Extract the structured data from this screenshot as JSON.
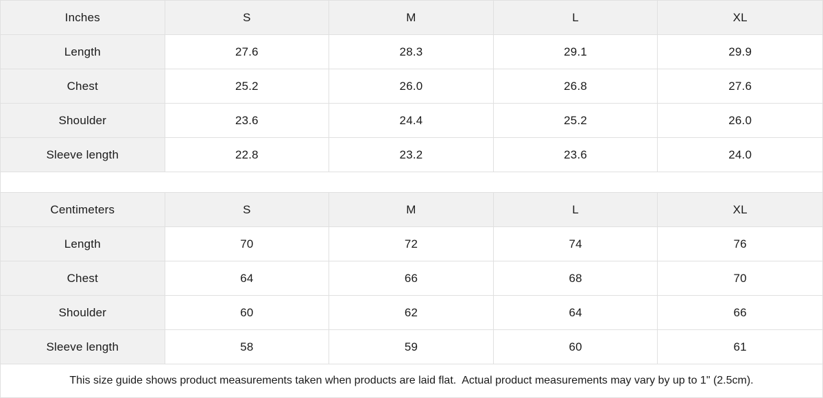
{
  "colors": {
    "header_bg": "#f1f1f1",
    "border": "#e0e0e0",
    "text": "#1a1a1a",
    "background": "#ffffff"
  },
  "tables": [
    {
      "unit_label": "Inches",
      "sizes": [
        "S",
        "M",
        "L",
        "XL"
      ],
      "rows": [
        {
          "label": "Length",
          "values": [
            "27.6",
            "28.3",
            "29.1",
            "29.9"
          ]
        },
        {
          "label": "Chest",
          "values": [
            "25.2",
            "26.0",
            "26.8",
            "27.6"
          ]
        },
        {
          "label": "Shoulder",
          "values": [
            "23.6",
            "24.4",
            "25.2",
            "26.0"
          ]
        },
        {
          "label": "Sleeve length",
          "values": [
            "22.8",
            "23.2",
            "23.6",
            "24.0"
          ]
        }
      ]
    },
    {
      "unit_label": "Centimeters",
      "sizes": [
        "S",
        "M",
        "L",
        "XL"
      ],
      "rows": [
        {
          "label": "Length",
          "values": [
            "70",
            "72",
            "74",
            "76"
          ]
        },
        {
          "label": "Chest",
          "values": [
            "64",
            "66",
            "68",
            "70"
          ]
        },
        {
          "label": "Shoulder",
          "values": [
            "60",
            "62",
            "64",
            "66"
          ]
        },
        {
          "label": "Sleeve length",
          "values": [
            "58",
            "59",
            "60",
            "61"
          ]
        }
      ]
    }
  ],
  "footer": {
    "note": "This size guide shows product measurements taken when products are laid flat.  Actual product measurements may vary by up to 1\" (2.5cm)."
  }
}
